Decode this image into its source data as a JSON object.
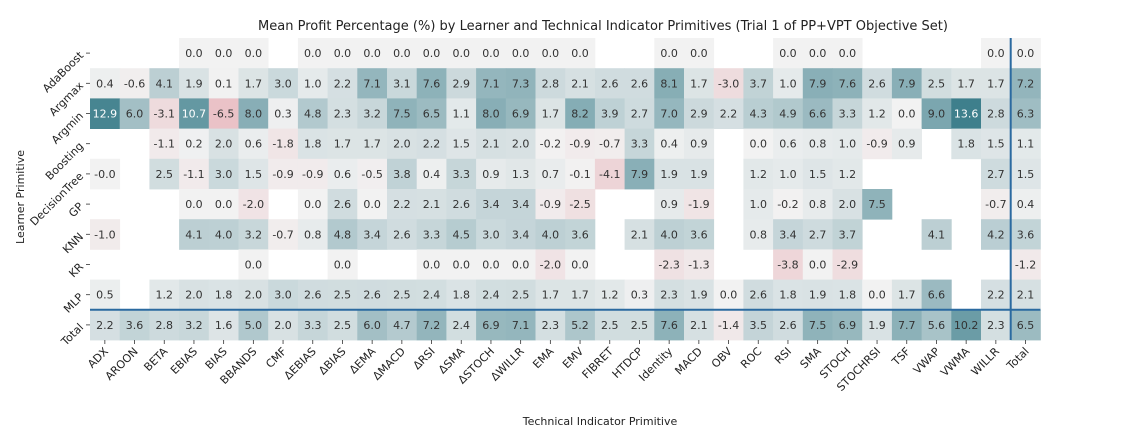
{
  "chart_data": {
    "type": "heatmap",
    "title": "Mean Profit Percentage (%) by Learner and Technical Indicator Primitives (Trial 1 of PP+VPT Objective Set)",
    "xlabel": "Technical Indicator Primitive",
    "ylabel": "Learner Primitive",
    "columns": [
      "ADX",
      "AROON",
      "BETA",
      "EBIAS",
      "BIAS",
      "BBANDS",
      "CMF",
      "ΔEBIAS",
      "ΔBIAS",
      "ΔEMA",
      "ΔMACD",
      "ΔRSI",
      "ΔSMA",
      "ΔSTOCH",
      "ΔWILLR",
      "EMA",
      "EMV",
      "FIBRET",
      "HTDCP",
      "Identity",
      "MACD",
      "OBV",
      "ROC",
      "RSI",
      "SMA",
      "STOCH",
      "STOCHRSI",
      "TSF",
      "VWAP",
      "VWMA",
      "WILLR",
      "Total"
    ],
    "rows": [
      "AdaBoost",
      "Argmax",
      "Argmin",
      "Boosting",
      "DecisionTree",
      "GP",
      "KNN",
      "KR",
      "MLP",
      "Total"
    ],
    "values": [
      [
        null,
        null,
        null,
        0.0,
        0.0,
        0.0,
        null,
        0.0,
        0.0,
        0.0,
        0.0,
        0.0,
        0.0,
        0.0,
        0.0,
        0.0,
        0.0,
        null,
        null,
        0.0,
        0.0,
        null,
        null,
        0.0,
        0.0,
        0.0,
        null,
        null,
        null,
        null,
        0.0,
        0.0
      ],
      [
        0.4,
        -0.6,
        4.1,
        1.9,
        0.1,
        1.7,
        3.0,
        1.0,
        2.2,
        7.1,
        3.1,
        7.6,
        2.9,
        7.1,
        7.3,
        2.8,
        2.1,
        2.6,
        2.6,
        8.1,
        1.7,
        -3.0,
        3.7,
        1.0,
        7.9,
        7.6,
        2.6,
        7.9,
        2.5,
        1.7,
        1.7,
        7.2
      ],
      [
        12.9,
        6.0,
        -3.1,
        10.7,
        -6.5,
        8.0,
        0.3,
        4.8,
        2.3,
        3.2,
        7.5,
        6.5,
        1.1,
        8.0,
        6.9,
        1.7,
        8.2,
        3.9,
        2.7,
        7.0,
        2.9,
        2.2,
        4.3,
        4.9,
        6.6,
        3.3,
        1.2,
        0.0,
        9.0,
        13.6,
        2.8,
        6.3
      ],
      [
        null,
        null,
        -1.1,
        0.2,
        2.0,
        0.6,
        -1.8,
        1.8,
        1.7,
        1.7,
        2.0,
        2.2,
        1.5,
        2.1,
        2.0,
        -0.2,
        -0.9,
        -0.7,
        3.3,
        0.4,
        0.9,
        null,
        0.0,
        0.6,
        0.8,
        1.0,
        -0.9,
        0.9,
        null,
        1.8,
        1.5,
        1.1
      ],
      [
        -0.0,
        null,
        2.5,
        -1.1,
        3.0,
        1.5,
        -0.9,
        -0.9,
        0.6,
        -0.5,
        3.8,
        0.4,
        3.3,
        0.9,
        1.3,
        0.7,
        -0.1,
        -4.1,
        7.9,
        1.9,
        1.9,
        null,
        1.2,
        1.0,
        1.5,
        1.2,
        null,
        null,
        null,
        null,
        2.7,
        1.5
      ],
      [
        null,
        null,
        null,
        0.0,
        0.0,
        -2.0,
        null,
        0.0,
        2.6,
        0.0,
        2.2,
        2.1,
        2.6,
        3.4,
        3.4,
        -0.9,
        -2.5,
        null,
        null,
        0.9,
        -1.9,
        null,
        1.0,
        -0.2,
        0.8,
        2.0,
        7.5,
        null,
        null,
        null,
        -0.7,
        0.4
      ],
      [
        -1.0,
        null,
        null,
        4.1,
        4.0,
        3.2,
        -0.7,
        0.8,
        4.8,
        3.4,
        2.6,
        3.3,
        4.5,
        3.0,
        3.4,
        4.0,
        3.6,
        null,
        2.1,
        4.0,
        3.6,
        null,
        0.8,
        3.4,
        2.7,
        3.7,
        null,
        null,
        4.1,
        null,
        4.2,
        3.6
      ],
      [
        null,
        null,
        null,
        null,
        null,
        0.0,
        null,
        null,
        0.0,
        null,
        null,
        0.0,
        0.0,
        0.0,
        0.0,
        -2.0,
        0.0,
        null,
        null,
        -2.3,
        -1.3,
        null,
        null,
        -3.8,
        0.0,
        -2.9,
        null,
        null,
        null,
        null,
        null,
        -1.2
      ],
      [
        0.5,
        null,
        1.2,
        2.0,
        1.8,
        2.0,
        3.0,
        2.6,
        2.5,
        2.6,
        2.5,
        2.4,
        1.8,
        2.4,
        2.5,
        1.7,
        1.7,
        1.2,
        0.3,
        2.3,
        1.9,
        0.0,
        2.6,
        1.8,
        1.9,
        1.8,
        0.0,
        1.7,
        6.6,
        null,
        2.2,
        2.1
      ],
      [
        2.2,
        3.6,
        2.8,
        3.2,
        1.6,
        5.0,
        2.0,
        3.3,
        2.5,
        6.0,
        4.7,
        7.2,
        2.4,
        6.9,
        7.1,
        2.3,
        5.2,
        2.5,
        2.5,
        7.6,
        2.1,
        -1.4,
        3.5,
        2.6,
        7.5,
        6.9,
        1.9,
        7.7,
        5.6,
        10.2,
        2.3,
        6.5
      ]
    ],
    "color_range": [
      -13.6,
      13.6
    ],
    "colormap": {
      "negative": "#e28e97",
      "center": "#f2f2f2",
      "positive": "#3e7f8c"
    },
    "separator_color": "#2b6aa0"
  }
}
